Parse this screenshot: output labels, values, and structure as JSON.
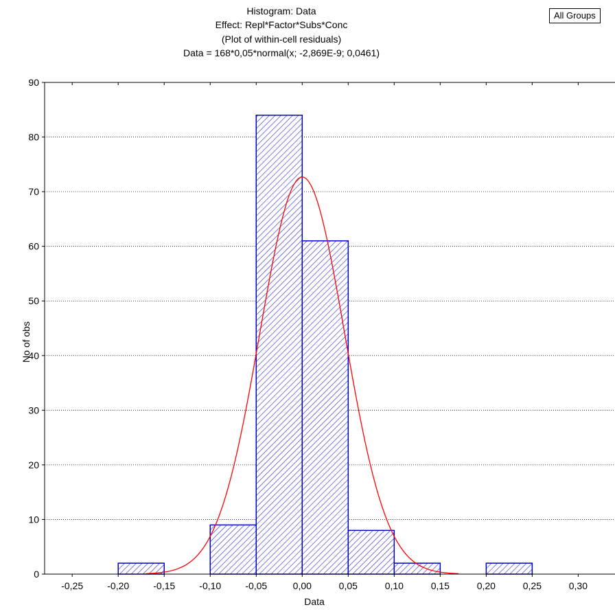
{
  "badge": "All Groups",
  "chart_data": {
    "type": "bar",
    "title_lines": [
      "Histogram: Data",
      "Effect: Repl*Factor*Subs*Conc",
      "(Plot of within-cell residuals)",
      "Data = 168*0,05*normal(x; -2,869E-9; 0,0461)"
    ],
    "xlabel": "Data",
    "ylabel": "No of obs",
    "xlim": [
      -0.28,
      0.34
    ],
    "ylim": [
      0,
      90
    ],
    "xticks": [
      -0.25,
      -0.2,
      -0.15,
      -0.1,
      -0.05,
      0.0,
      0.05,
      0.1,
      0.15,
      0.2,
      0.25,
      0.3
    ],
    "xtick_labels": [
      "-0,25",
      "-0,20",
      "-0,15",
      "-0,10",
      "-0,05",
      "0,00",
      "0,05",
      "0,10",
      "0,15",
      "0,20",
      "0,25",
      "0,30"
    ],
    "yticks": [
      0,
      10,
      20,
      30,
      40,
      50,
      60,
      70,
      80,
      90
    ],
    "ytick_labels": [
      "0",
      "10",
      "20",
      "30",
      "40",
      "50",
      "60",
      "70",
      "80",
      "90"
    ],
    "grid": "horizontal dotted",
    "bins": [
      {
        "from": -0.2,
        "to": -0.15,
        "count": 2
      },
      {
        "from": -0.1,
        "to": -0.05,
        "count": 9
      },
      {
        "from": -0.05,
        "to": 0.0,
        "count": 84
      },
      {
        "from": 0.0,
        "to": 0.05,
        "count": 61
      },
      {
        "from": 0.05,
        "to": 0.1,
        "count": 8
      },
      {
        "from": 0.1,
        "to": 0.15,
        "count": 2
      },
      {
        "from": 0.2,
        "to": 0.25,
        "count": 2
      }
    ],
    "normal_curve": {
      "n": 168,
      "bin_width": 0.05,
      "mean": -2.869e-09,
      "sd": 0.0461,
      "color": "#ff0000",
      "x_range": [
        -0.17,
        0.17
      ]
    },
    "bar_edge_color": "#0000cc",
    "bar_hatch_color": "#3333cc"
  }
}
